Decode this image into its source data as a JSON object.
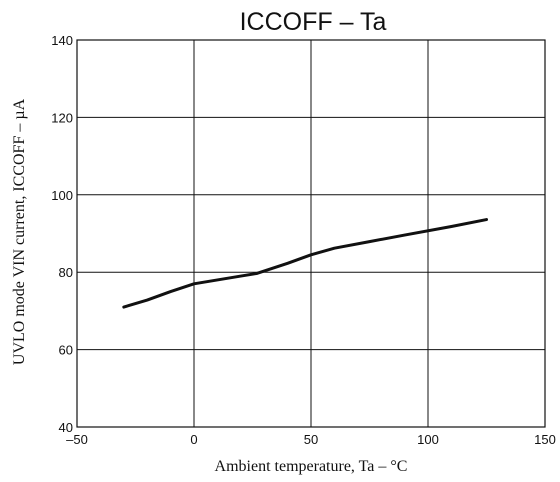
{
  "chart_data": {
    "type": "line",
    "title": "ICCOFF  –  Ta",
    "xlabel": "Ambient temperature,  Ta  –  °C",
    "ylabel": "UVLO mode VIN current, ICCOFF  –  µA",
    "xlim": [
      -50,
      150
    ],
    "ylim": [
      40,
      140
    ],
    "xticks": [
      -50,
      0,
      50,
      100,
      150
    ],
    "xtick_labels": [
      "–50",
      "0",
      "50",
      "100",
      "150"
    ],
    "yticks": [
      40,
      60,
      80,
      100,
      120,
      140
    ],
    "ytick_labels": [
      "40",
      "60",
      "80",
      "100",
      "120",
      "140"
    ],
    "grid": true,
    "series": [
      {
        "color": "#111111",
        "x": [
          -30,
          -20,
          -10,
          0,
          10,
          20,
          27,
          40,
          50,
          60,
          75,
          90,
          110,
          125
        ],
        "y": [
          71,
          72.8,
          75,
          77,
          78,
          79,
          79.7,
          82.3,
          84.5,
          86.2,
          87.9,
          89.6,
          91.8,
          93.6
        ]
      }
    ]
  }
}
